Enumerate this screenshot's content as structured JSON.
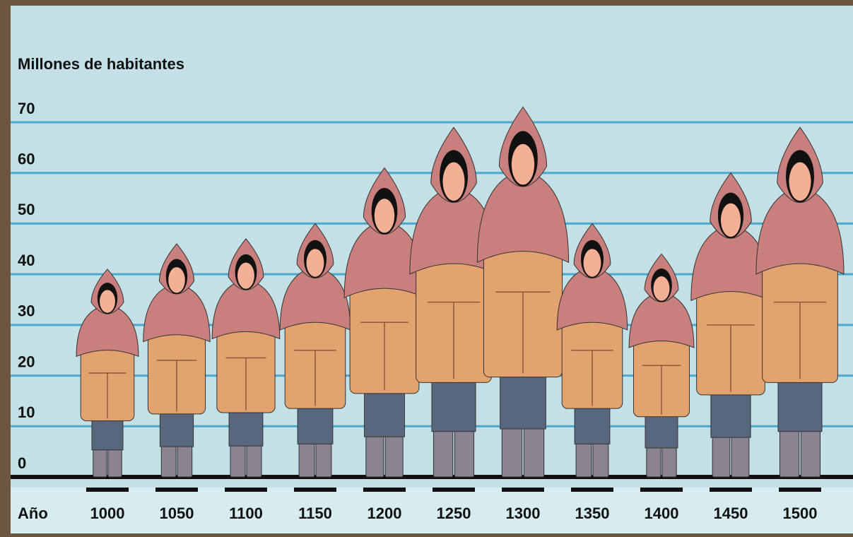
{
  "chart_data": {
    "type": "pictogram",
    "y_label": "Millones de habitantes",
    "x_label": "Año",
    "categories": [
      "1000",
      "1050",
      "1100",
      "1150",
      "1200",
      "1250",
      "1300",
      "1350",
      "1400",
      "1450",
      "1500"
    ],
    "values": [
      41,
      46,
      47,
      50,
      61,
      69,
      73,
      50,
      44,
      60,
      69
    ],
    "ylim": [
      0,
      70
    ],
    "yticks": [
      0,
      10,
      20,
      30,
      40,
      50,
      60,
      70
    ],
    "grid": true,
    "colors": {
      "hood": "#c97f7c",
      "robe": "#e2a36f",
      "pants": "#59677d",
      "boots": "#8a8390",
      "face": "#f4b095",
      "grid": "#4ca8cc"
    }
  }
}
